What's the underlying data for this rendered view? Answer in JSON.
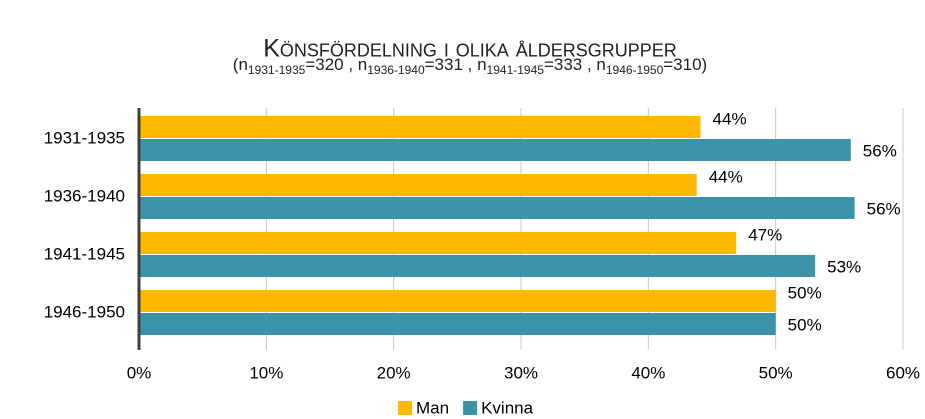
{
  "chart_data": {
    "type": "hbar",
    "title": "Könsfördelning i olika åldersgrupper",
    "subtitle": [
      {
        "text": "(n"
      },
      {
        "text": "1931-1935",
        "sub": true
      },
      {
        "text": "=320 , n"
      },
      {
        "text": "1936-1940",
        "sub": true
      },
      {
        "text": "=331 , n"
      },
      {
        "text": "1941-1945",
        "sub": true
      },
      {
        "text": "=333 , n"
      },
      {
        "text": "1946-1950",
        "sub": true
      },
      {
        "text": "=310)"
      }
    ],
    "categories": [
      "1931-1935",
      "1936-1940",
      "1941-1945",
      "1946-1950"
    ],
    "series": [
      {
        "name": "Man",
        "color": "#ffb800",
        "values": [
          44.1,
          43.8,
          46.9,
          50.0
        ],
        "value_labels": [
          "44%",
          "44%",
          "47%",
          "50%"
        ]
      },
      {
        "name": "Kvinna",
        "color": "#3a93a8",
        "values": [
          55.9,
          56.2,
          53.1,
          50.0
        ],
        "value_labels": [
          "56%",
          "56%",
          "53%",
          "50%"
        ]
      }
    ],
    "xlim": [
      0,
      60
    ],
    "xticks": [
      {
        "value": 0,
        "label": "0%"
      },
      {
        "value": 10,
        "label": "10%"
      },
      {
        "value": 20,
        "label": "20%"
      },
      {
        "value": 30,
        "label": "30%"
      },
      {
        "value": 40,
        "label": "40%"
      },
      {
        "value": 50,
        "label": "50%"
      },
      {
        "value": 60,
        "label": "60%"
      }
    ],
    "grid": true,
    "legend": "bottom"
  }
}
